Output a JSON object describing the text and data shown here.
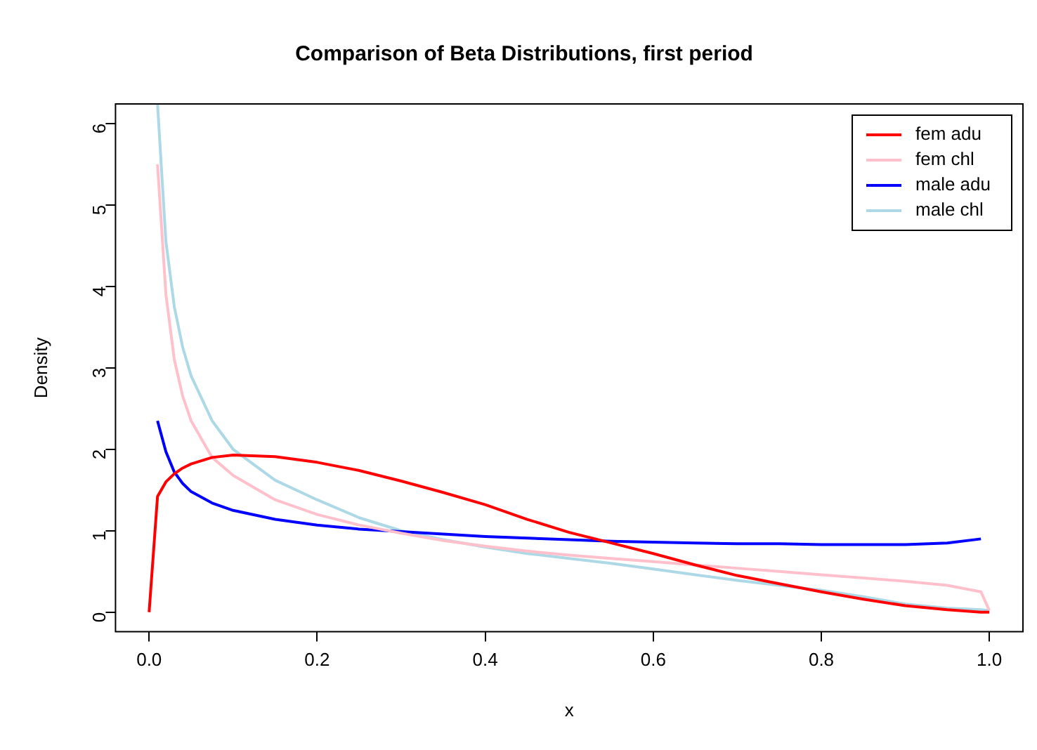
{
  "chart_data": {
    "type": "line",
    "title": "Comparison of Beta Distributions, first period",
    "xlabel": "x",
    "ylabel": "Density",
    "x": [
      0,
      0.01,
      0.02,
      0.03,
      0.04,
      0.05,
      0.075,
      0.1,
      0.15,
      0.2,
      0.25,
      0.3,
      0.35,
      0.4,
      0.45,
      0.5,
      0.55,
      0.6,
      0.65,
      0.7,
      0.75,
      0.8,
      0.85,
      0.9,
      0.95,
      0.99,
      1
    ],
    "series": [
      {
        "name": "fem adu",
        "color": "#ff0000",
        "values": [
          0,
          1.42,
          1.6,
          1.7,
          1.77,
          1.82,
          1.9,
          1.93,
          1.91,
          1.84,
          1.74,
          1.61,
          1.47,
          1.32,
          1.14,
          0.98,
          0.85,
          0.72,
          0.58,
          0.45,
          0.35,
          0.25,
          0.16,
          0.08,
          0.03,
          0,
          0
        ]
      },
      {
        "name": "fem chl",
        "color": "#ffc0cb",
        "values": [
          null,
          5.5,
          3.9,
          3.1,
          2.65,
          2.35,
          1.9,
          1.68,
          1.38,
          1.2,
          1.07,
          0.97,
          0.88,
          0.81,
          0.75,
          0.7,
          0.66,
          0.62,
          0.58,
          0.54,
          0.5,
          0.46,
          0.42,
          0.38,
          0.33,
          0.25,
          0.02
        ]
      },
      {
        "name": "male adu",
        "color": "#0000ff",
        "values": [
          null,
          2.35,
          1.97,
          1.72,
          1.58,
          1.48,
          1.34,
          1.25,
          1.14,
          1.07,
          1.02,
          0.99,
          0.96,
          0.93,
          0.91,
          0.89,
          0.87,
          0.86,
          0.85,
          0.84,
          0.84,
          0.83,
          0.83,
          0.83,
          0.85,
          0.9,
          null
        ]
      },
      {
        "name": "male chl",
        "color": "#add8e6",
        "values": [
          null,
          6.24,
          4.55,
          3.75,
          3.25,
          2.9,
          2.35,
          2.0,
          1.62,
          1.38,
          1.16,
          1.0,
          0.89,
          0.8,
          0.72,
          0.66,
          0.6,
          0.53,
          0.46,
          0.39,
          0.33,
          0.27,
          0.19,
          0.1,
          0.05,
          0.03,
          0.02
        ]
      }
    ],
    "xlim": [
      -0.04,
      1.04
    ],
    "xticks": [
      {
        "value": 0,
        "label": "0.0"
      },
      {
        "value": 0.2,
        "label": "0.2"
      },
      {
        "value": 0.4,
        "label": "0.4"
      },
      {
        "value": 0.6,
        "label": "0.6"
      },
      {
        "value": 0.8,
        "label": "0.8"
      },
      {
        "value": 1,
        "label": "1.0"
      }
    ],
    "ylim": [
      -0.24,
      6.24
    ],
    "yticks": [
      0,
      1,
      2,
      3,
      4,
      5,
      6
    ],
    "grid": false,
    "legend": "top right",
    "marker": "none",
    "line_style": "solid"
  }
}
